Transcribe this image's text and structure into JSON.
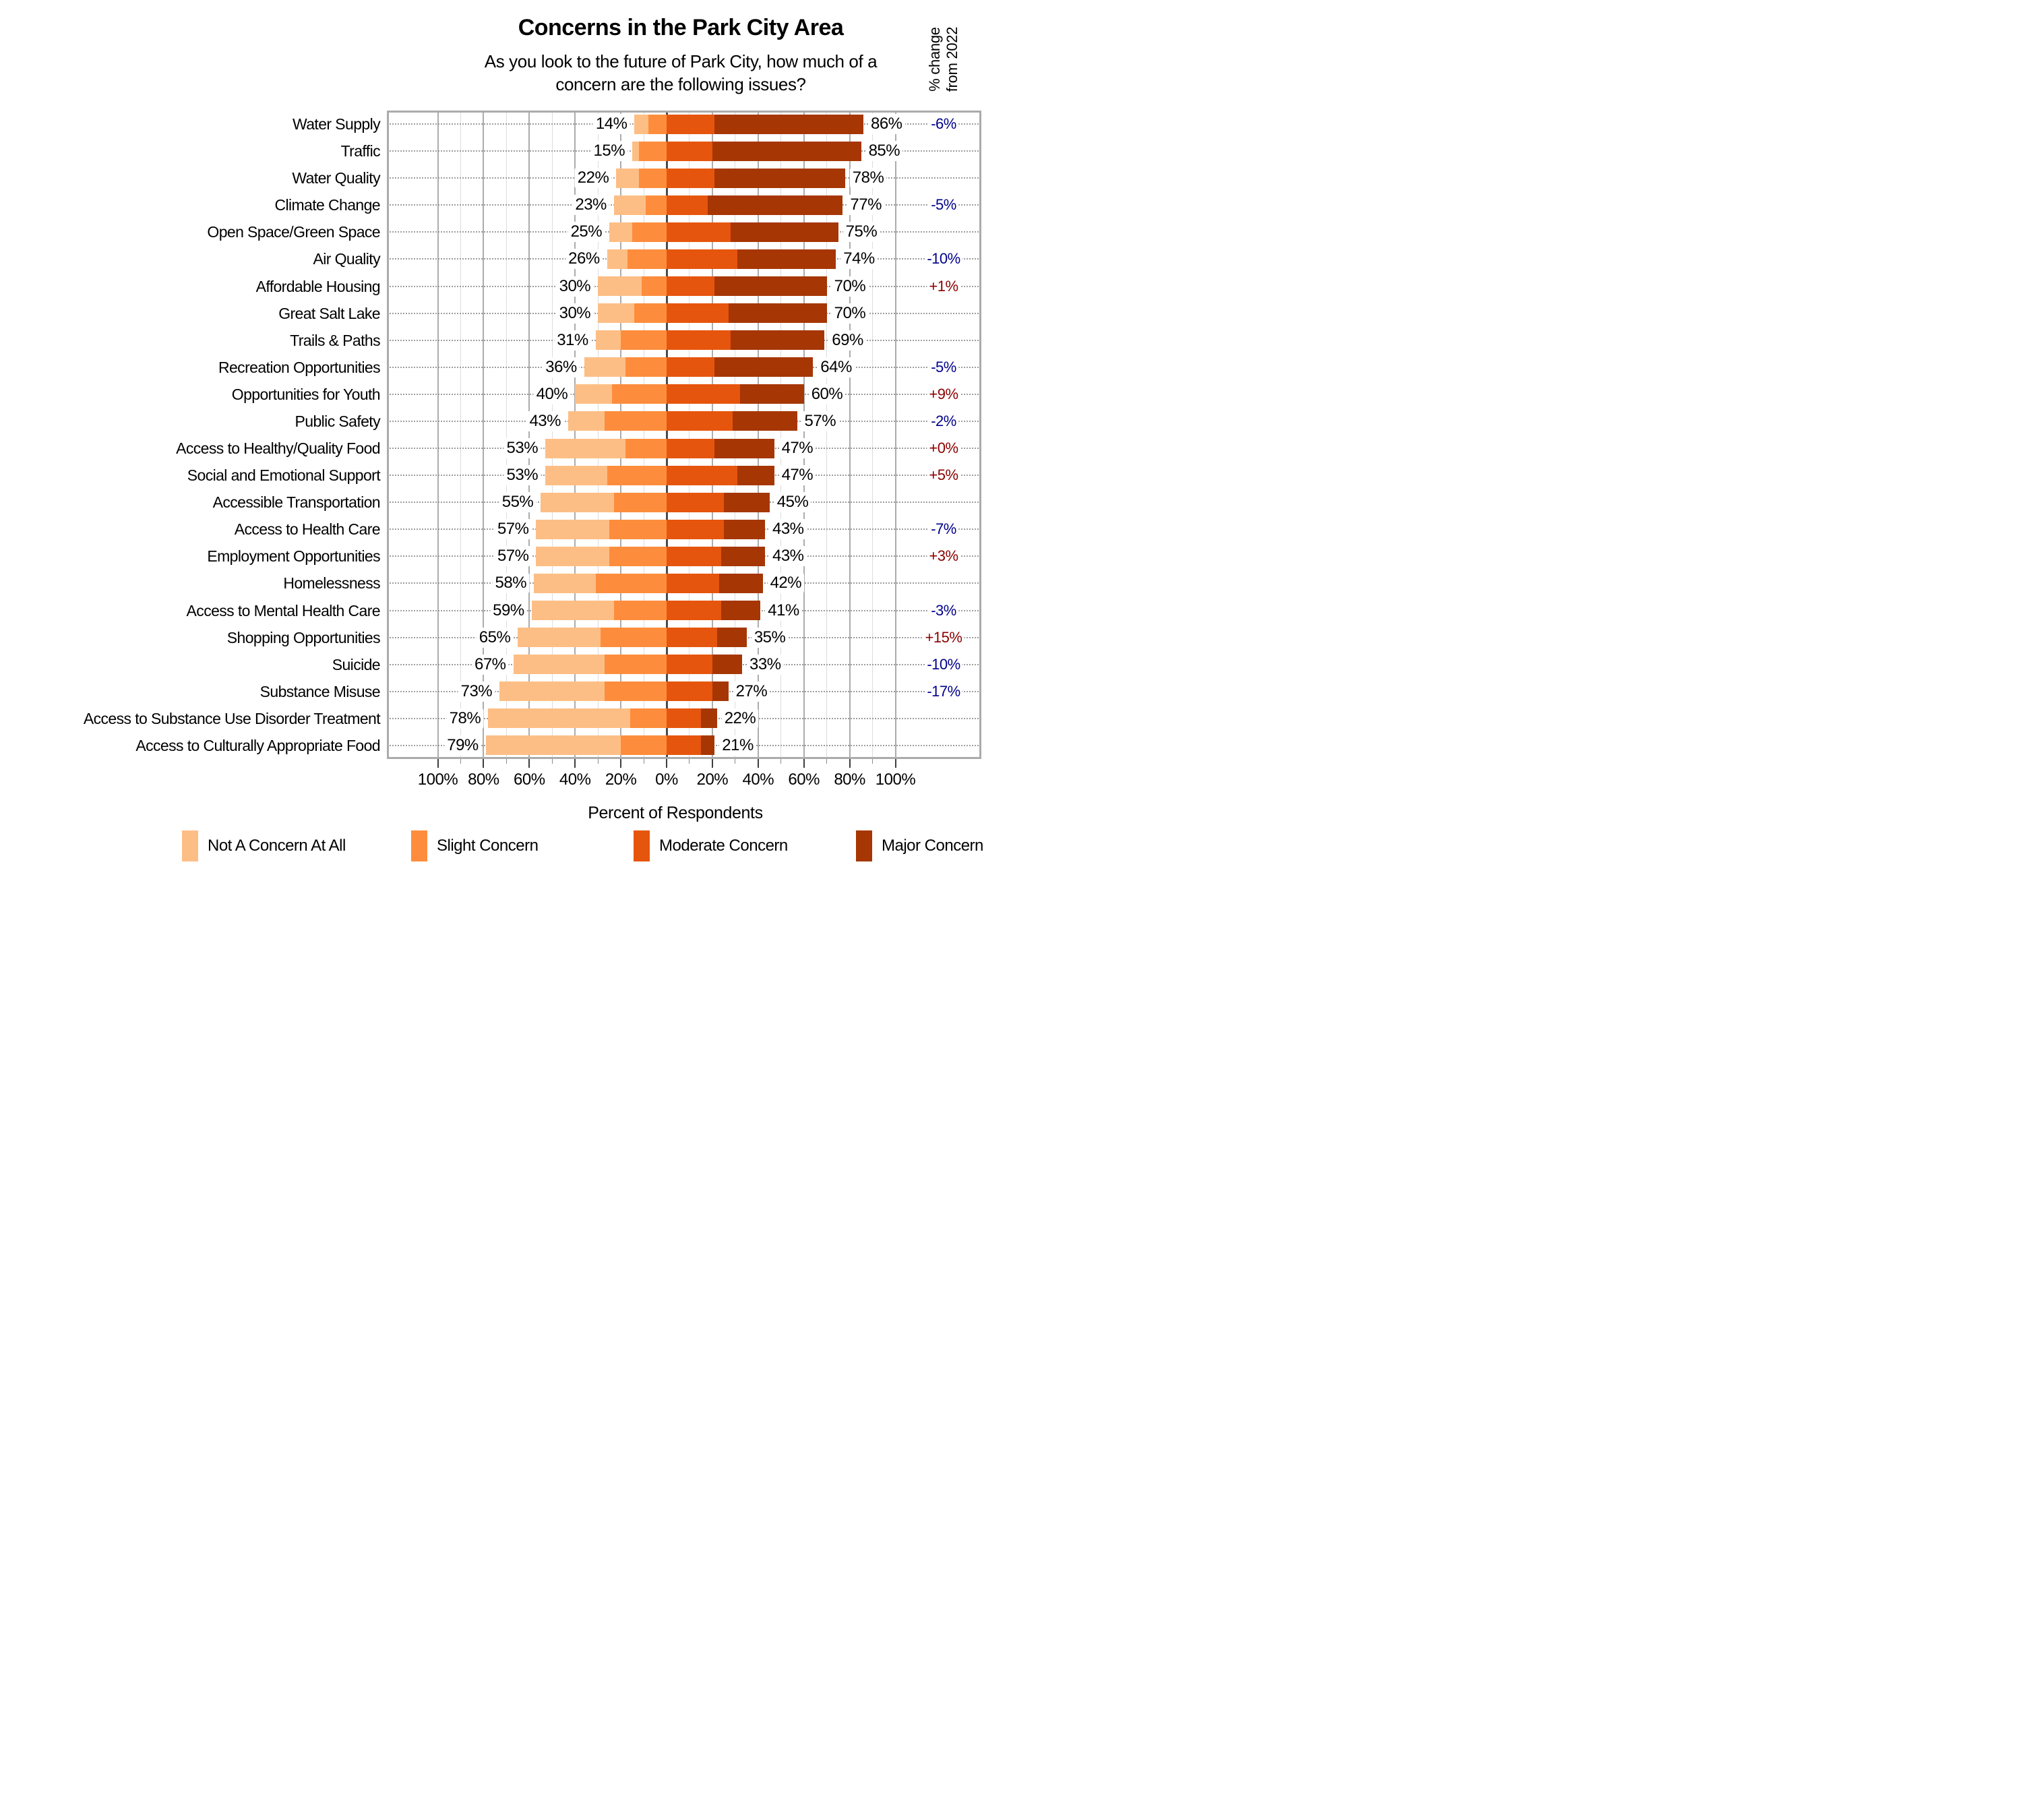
{
  "title": "Concerns in the Park City Area",
  "subtitle": [
    "As you look to the future of Park City, how much of a",
    "concern are the following issues?"
  ],
  "change_header": {
    "line1": "% change",
    "line2": "from 2022"
  },
  "axis": {
    "label": "Percent of Respondents",
    "ticks": [
      {
        "value": -100,
        "label": "100%"
      },
      {
        "value": -80,
        "label": "80%"
      },
      {
        "value": -60,
        "label": "60%"
      },
      {
        "value": -40,
        "label": "40%"
      },
      {
        "value": -20,
        "label": "20%"
      },
      {
        "value": 0,
        "label": "0%"
      },
      {
        "value": 20,
        "label": "20%"
      },
      {
        "value": 40,
        "label": "40%"
      },
      {
        "value": 60,
        "label": "60%"
      },
      {
        "value": 80,
        "label": "80%"
      },
      {
        "value": 100,
        "label": "100%"
      }
    ]
  },
  "legend": [
    {
      "label": "Not A Concern At All",
      "color": "#FDBE85"
    },
    {
      "label": "Slight Concern",
      "color": "#FD8D3C"
    },
    {
      "label": "Moderate Concern",
      "color": "#E6550D"
    },
    {
      "label": "Major Concern",
      "color": "#A63603"
    }
  ],
  "colors": {
    "not_a_concern": "#FDBE85",
    "slight": "#FD8D3C",
    "moderate": "#E6550D",
    "major": "#A63603",
    "change_negative": "#00008B",
    "change_positive": "#8B0000",
    "grid_minor": "#DCDCDC",
    "grid_major": "#ACACAC",
    "grid_zero": "#4A4A4A",
    "row_dotted": "#9C9C9C",
    "frame": "#ABABAB"
  },
  "chart_data": {
    "type": "diverging_stacked_bar",
    "title": "Concerns in the Park City Area",
    "subtitle": "As you look to the future of Park City, how much of a concern are the following issues?",
    "xlabel": "Percent of Respondents",
    "x_axis": {
      "range": [
        -100,
        100
      ],
      "major_tick_step": 20,
      "minor_tick_step": 10
    },
    "change_column_header": "% change from 2022",
    "series": [
      "Not A Concern At All",
      "Slight Concern",
      "Moderate Concern",
      "Major Concern"
    ],
    "legend_position": "bottom",
    "rows": [
      {
        "label": "Water Supply",
        "not_a_concern": 6,
        "slight": 8,
        "moderate": 21,
        "major": 65,
        "left_total": "14%",
        "right_total": "86%",
        "change": "-6%"
      },
      {
        "label": "Traffic",
        "not_a_concern": 3,
        "slight": 12,
        "moderate": 20,
        "major": 65,
        "left_total": "15%",
        "right_total": "85%",
        "change": null
      },
      {
        "label": "Water Quality",
        "not_a_concern": 10,
        "slight": 12,
        "moderate": 21,
        "major": 57,
        "left_total": "22%",
        "right_total": "78%",
        "change": null
      },
      {
        "label": "Climate Change",
        "not_a_concern": 14,
        "slight": 9,
        "moderate": 18,
        "major": 59,
        "left_total": "23%",
        "right_total": "77%",
        "change": "-5%"
      },
      {
        "label": "Open Space/Green Space",
        "not_a_concern": 10,
        "slight": 15,
        "moderate": 28,
        "major": 47,
        "left_total": "25%",
        "right_total": "75%",
        "change": null
      },
      {
        "label": "Air Quality",
        "not_a_concern": 9,
        "slight": 17,
        "moderate": 31,
        "major": 43,
        "left_total": "26%",
        "right_total": "74%",
        "change": "-10%"
      },
      {
        "label": "Affordable Housing",
        "not_a_concern": 19,
        "slight": 11,
        "moderate": 21,
        "major": 49,
        "left_total": "30%",
        "right_total": "70%",
        "change": "+1%"
      },
      {
        "label": "Great Salt Lake",
        "not_a_concern": 16,
        "slight": 14,
        "moderate": 27,
        "major": 43,
        "left_total": "30%",
        "right_total": "70%",
        "change": null
      },
      {
        "label": "Trails & Paths",
        "not_a_concern": 11,
        "slight": 20,
        "moderate": 28,
        "major": 41,
        "left_total": "31%",
        "right_total": "69%",
        "change": null
      },
      {
        "label": "Recreation Opportunities",
        "not_a_concern": 18,
        "slight": 18,
        "moderate": 21,
        "major": 43,
        "left_total": "36%",
        "right_total": "64%",
        "change": "-5%"
      },
      {
        "label": "Opportunities for Youth",
        "not_a_concern": 16,
        "slight": 24,
        "moderate": 32,
        "major": 28,
        "left_total": "40%",
        "right_total": "60%",
        "change": "+9%"
      },
      {
        "label": "Public Safety",
        "not_a_concern": 16,
        "slight": 27,
        "moderate": 29,
        "major": 28,
        "left_total": "43%",
        "right_total": "57%",
        "change": "-2%"
      },
      {
        "label": "Access to Healthy/Quality Food",
        "not_a_concern": 35,
        "slight": 18,
        "moderate": 21,
        "major": 26,
        "left_total": "53%",
        "right_total": "47%",
        "change": "+0%"
      },
      {
        "label": "Social and Emotional Support",
        "not_a_concern": 27,
        "slight": 26,
        "moderate": 31,
        "major": 16,
        "left_total": "53%",
        "right_total": "47%",
        "change": "+5%"
      },
      {
        "label": "Accessible Transportation",
        "not_a_concern": 32,
        "slight": 23,
        "moderate": 25,
        "major": 20,
        "left_total": "55%",
        "right_total": "45%",
        "change": null
      },
      {
        "label": "Access to Health Care",
        "not_a_concern": 32,
        "slight": 25,
        "moderate": 25,
        "major": 18,
        "left_total": "57%",
        "right_total": "43%",
        "change": "-7%"
      },
      {
        "label": "Employment Opportunities",
        "not_a_concern": 32,
        "slight": 25,
        "moderate": 24,
        "major": 19,
        "left_total": "57%",
        "right_total": "43%",
        "change": "+3%"
      },
      {
        "label": "Homelessness",
        "not_a_concern": 27,
        "slight": 31,
        "moderate": 23,
        "major": 19,
        "left_total": "58%",
        "right_total": "42%",
        "change": null
      },
      {
        "label": "Access to Mental Health Care",
        "not_a_concern": 36,
        "slight": 23,
        "moderate": 24,
        "major": 17,
        "left_total": "59%",
        "right_total": "41%",
        "change": "-3%"
      },
      {
        "label": "Shopping Opportunities",
        "not_a_concern": 36,
        "slight": 29,
        "moderate": 22,
        "major": 13,
        "left_total": "65%",
        "right_total": "35%",
        "change": "+15%"
      },
      {
        "label": "Suicide",
        "not_a_concern": 40,
        "slight": 27,
        "moderate": 20,
        "major": 13,
        "left_total": "67%",
        "right_total": "33%",
        "change": "-10%"
      },
      {
        "label": "Substance Misuse",
        "not_a_concern": 46,
        "slight": 27,
        "moderate": 20,
        "major": 7,
        "left_total": "73%",
        "right_total": "27%",
        "change": "-17%"
      },
      {
        "label": "Access to Substance Use Disorder Treatment",
        "not_a_concern": 62,
        "slight": 16,
        "moderate": 15,
        "major": 7,
        "left_total": "78%",
        "right_total": "22%",
        "change": null
      },
      {
        "label": "Access to Culturally Appropriate Food",
        "not_a_concern": 59,
        "slight": 20,
        "moderate": 15,
        "major": 6,
        "left_total": "79%",
        "right_total": "21%",
        "change": null
      }
    ]
  }
}
